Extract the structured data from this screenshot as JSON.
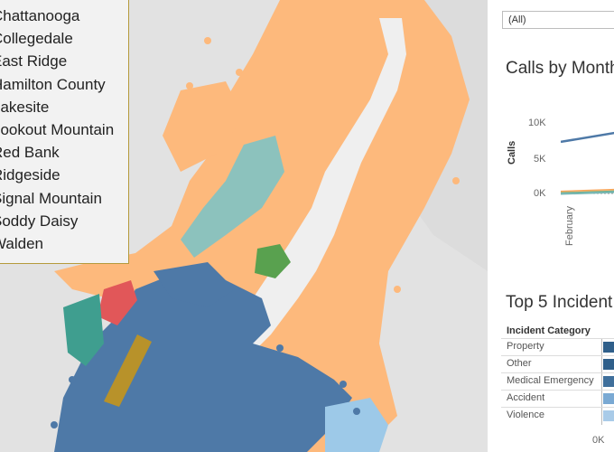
{
  "legend": {
    "items": [
      {
        "label": "Chattanooga",
        "color": "#4e79a7"
      },
      {
        "label": "Collegedale",
        "color": "#b8922a"
      },
      {
        "label": "East Ridge",
        "color": "#e15759"
      },
      {
        "label": "Hamilton County",
        "color": "#fdb97c"
      },
      {
        "label": "Lakesite",
        "color": "#59a14f"
      },
      {
        "label": "Lookout Mountain",
        "color": "#3f9e8f"
      },
      {
        "label": "Red Bank",
        "color": "#9dc9e8"
      },
      {
        "label": "Ridgeside",
        "color": "#76b7b2"
      },
      {
        "label": "Signal Mountain",
        "color": "#8cc2bd"
      },
      {
        "label": "Soddy Daisy",
        "color": "#f5a65b"
      },
      {
        "label": "Walden",
        "color": "#ffcf99"
      }
    ]
  },
  "filter": {
    "value": "(All)"
  },
  "line_chart": {
    "title": "Calls by Month",
    "ylabel": "Calls",
    "yticks": [
      "10K",
      "5K",
      "0K"
    ],
    "xticks": [
      "February"
    ]
  },
  "bar_chart": {
    "title": "Top 5 Incident",
    "header": "Incident Category",
    "categories": [
      "Property",
      "Other",
      "Medical Emergency",
      "Accident",
      "Violence"
    ],
    "bar_colors": [
      "#2f5f8a",
      "#2f5f8a",
      "#3f6f9b",
      "#7aa9d3",
      "#a9cbe8"
    ],
    "axis_tick": "0K"
  },
  "chart_data": [
    {
      "type": "line",
      "title": "Calls by Month",
      "ylabel": "Calls",
      "ylim": [
        0,
        12000
      ],
      "x": [
        "February"
      ],
      "series": [
        {
          "values": [
            8800
          ],
          "color": "#4e79a7"
        },
        {
          "values": [
            400
          ],
          "color": "#f5a65b"
        },
        {
          "values": [
            250
          ],
          "color": "#fdb97c"
        },
        {
          "values": [
            150
          ],
          "color": "#59a14f"
        },
        {
          "values": [
            100
          ],
          "color": "#76b7b2"
        }
      ]
    },
    {
      "type": "bar",
      "title": "Top 5 Incident",
      "categories": [
        "Property",
        "Other",
        "Medical Emergency",
        "Accident",
        "Violence"
      ],
      "xlabel": "",
      "ylabel": "Incident Category"
    }
  ]
}
